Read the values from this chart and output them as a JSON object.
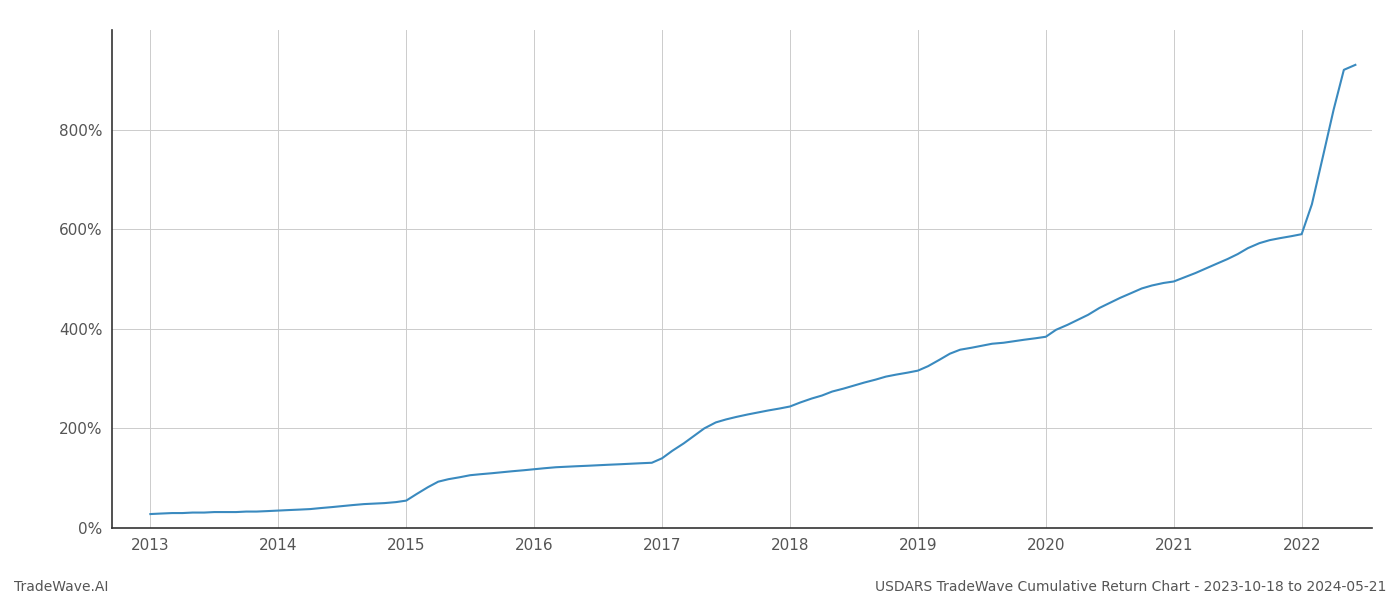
{
  "title": "USDARS TradeWave Cumulative Return Chart - 2023-10-18 to 2024-05-21",
  "footer_left": "TradeWave.AI",
  "footer_right": "USDARS TradeWave Cumulative Return Chart - 2023-10-18 to 2024-05-21",
  "line_color": "#3a8abf",
  "background_color": "#ffffff",
  "grid_color": "#cccccc",
  "x_years": [
    2013,
    2014,
    2015,
    2016,
    2017,
    2018,
    2019,
    2020,
    2021,
    2022
  ],
  "x_data": [
    2013.0,
    2013.08,
    2013.17,
    2013.25,
    2013.33,
    2013.42,
    2013.5,
    2013.58,
    2013.67,
    2013.75,
    2013.83,
    2013.92,
    2014.0,
    2014.08,
    2014.17,
    2014.25,
    2014.33,
    2014.42,
    2014.5,
    2014.58,
    2014.67,
    2014.75,
    2014.83,
    2014.92,
    2015.0,
    2015.08,
    2015.17,
    2015.25,
    2015.33,
    2015.42,
    2015.5,
    2015.58,
    2015.67,
    2015.75,
    2015.83,
    2015.92,
    2016.0,
    2016.08,
    2016.17,
    2016.25,
    2016.33,
    2016.42,
    2016.5,
    2016.58,
    2016.67,
    2016.75,
    2016.83,
    2016.92,
    2017.0,
    2017.08,
    2017.17,
    2017.25,
    2017.33,
    2017.42,
    2017.5,
    2017.58,
    2017.67,
    2017.75,
    2017.83,
    2017.92,
    2018.0,
    2018.08,
    2018.17,
    2018.25,
    2018.33,
    2018.42,
    2018.5,
    2018.58,
    2018.67,
    2018.75,
    2018.83,
    2018.92,
    2019.0,
    2019.08,
    2019.17,
    2019.25,
    2019.33,
    2019.42,
    2019.5,
    2019.58,
    2019.67,
    2019.75,
    2019.83,
    2019.92,
    2020.0,
    2020.08,
    2020.17,
    2020.25,
    2020.33,
    2020.42,
    2020.5,
    2020.58,
    2020.67,
    2020.75,
    2020.83,
    2020.92,
    2021.0,
    2021.08,
    2021.17,
    2021.25,
    2021.33,
    2021.42,
    2021.5,
    2021.58,
    2021.67,
    2021.75,
    2021.83,
    2021.92,
    2022.0,
    2022.08,
    2022.17,
    2022.25,
    2022.33,
    2022.42
  ],
  "y_data": [
    28,
    29,
    30,
    30,
    31,
    31,
    32,
    32,
    32,
    33,
    33,
    34,
    35,
    36,
    37,
    38,
    40,
    42,
    44,
    46,
    48,
    49,
    50,
    52,
    55,
    68,
    82,
    93,
    98,
    102,
    106,
    108,
    110,
    112,
    114,
    116,
    118,
    120,
    122,
    123,
    124,
    125,
    126,
    127,
    128,
    129,
    130,
    131,
    140,
    155,
    170,
    185,
    200,
    212,
    218,
    223,
    228,
    232,
    236,
    240,
    244,
    252,
    260,
    266,
    274,
    280,
    286,
    292,
    298,
    304,
    308,
    312,
    316,
    325,
    338,
    350,
    358,
    362,
    366,
    370,
    372,
    375,
    378,
    381,
    384,
    398,
    408,
    418,
    428,
    442,
    452,
    462,
    472,
    481,
    487,
    492,
    495,
    503,
    512,
    521,
    530,
    540,
    550,
    562,
    572,
    578,
    582,
    586,
    590,
    650,
    750,
    840,
    920,
    930
  ],
  "ylim": [
    0,
    1000
  ],
  "yticks": [
    0,
    200,
    400,
    600,
    800
  ],
  "xlim": [
    2012.7,
    2022.55
  ]
}
